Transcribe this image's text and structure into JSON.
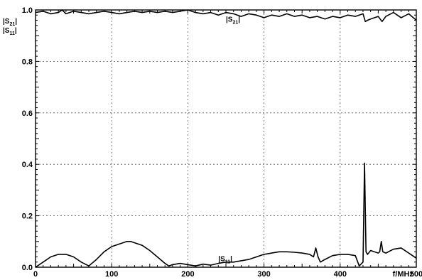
{
  "chart_data": {
    "type": "line",
    "title": "",
    "xlabel": "f/MHz",
    "ylabel": "|S21| |S11|",
    "xlim": [
      0,
      500
    ],
    "ylim": [
      0,
      1.0
    ],
    "grid": true,
    "x_ticks": [
      0,
      100,
      200,
      300,
      400,
      500
    ],
    "y_ticks": [
      0.0,
      0.2,
      0.4,
      0.6,
      0.8,
      1.0
    ],
    "x_tick_labels": [
      "0",
      "100",
      "200",
      "300",
      "400",
      "500"
    ],
    "y_tick_labels": [
      "0.0",
      "0.2",
      "0.4",
      "0.6",
      "0.8",
      "1.0"
    ],
    "y_label_lines": [
      {
        "main": "|S",
        "sub": "21",
        "end": "|"
      },
      {
        "main": "|S",
        "sub": "11",
        "end": "|"
      }
    ],
    "annotations": [
      {
        "main": "|S",
        "sub": "21",
        "end": "|",
        "x": 250,
        "y": 0.965
      },
      {
        "main": "|S",
        "sub": "11",
        "end": "|",
        "x": 240,
        "y": 0.035
      }
    ],
    "series": [
      {
        "name": "|S21|",
        "x": [
          0,
          10,
          20,
          30,
          35,
          40,
          50,
          60,
          70,
          80,
          90,
          100,
          110,
          120,
          130,
          140,
          150,
          160,
          170,
          180,
          190,
          200,
          210,
          220,
          230,
          240,
          250,
          260,
          270,
          280,
          290,
          300,
          310,
          320,
          330,
          340,
          350,
          360,
          370,
          380,
          390,
          400,
          410,
          420,
          430,
          433,
          436,
          440,
          450,
          455,
          460,
          470,
          480,
          490,
          500
        ],
        "values": [
          0.99,
          0.995,
          0.985,
          0.99,
          1.0,
          0.985,
          0.995,
          0.99,
          0.985,
          0.99,
          0.995,
          0.99,
          0.985,
          0.99,
          0.995,
          0.99,
          0.995,
          0.99,
          0.995,
          0.99,
          0.995,
          1.0,
          0.99,
          0.985,
          0.99,
          0.98,
          0.99,
          0.985,
          0.975,
          0.985,
          0.98,
          0.97,
          0.98,
          0.975,
          0.985,
          0.975,
          0.98,
          0.97,
          0.975,
          0.965,
          0.975,
          0.97,
          0.98,
          0.975,
          0.985,
          0.955,
          0.96,
          0.965,
          0.975,
          0.955,
          0.975,
          0.99,
          0.97,
          0.985,
          0.96
        ]
      },
      {
        "name": "|S11|",
        "x": [
          0,
          10,
          20,
          30,
          40,
          50,
          60,
          70,
          80,
          90,
          100,
          110,
          120,
          125,
          130,
          140,
          150,
          160,
          170,
          175,
          180,
          190,
          200,
          210,
          220,
          230,
          240,
          250,
          260,
          270,
          280,
          290,
          300,
          310,
          320,
          330,
          340,
          350,
          360,
          365,
          368,
          371,
          374,
          380,
          390,
          400,
          410,
          420,
          425,
          430,
          432,
          434,
          436,
          440,
          450,
          452,
          454,
          456,
          460,
          470,
          480,
          490,
          500
        ],
        "values": [
          0.0,
          0.02,
          0.04,
          0.05,
          0.05,
          0.04,
          0.02,
          0.005,
          0.03,
          0.06,
          0.08,
          0.09,
          0.1,
          0.1,
          0.095,
          0.085,
          0.065,
          0.04,
          0.015,
          0.005,
          0.01,
          0.015,
          0.01,
          0.005,
          0.012,
          0.008,
          0.015,
          0.02,
          0.02,
          0.025,
          0.03,
          0.04,
          0.05,
          0.055,
          0.06,
          0.06,
          0.058,
          0.055,
          0.05,
          0.04,
          0.075,
          0.04,
          0.02,
          0.03,
          0.045,
          0.05,
          0.05,
          0.045,
          0.005,
          0.02,
          0.405,
          0.06,
          0.05,
          0.065,
          0.055,
          0.06,
          0.1,
          0.06,
          0.055,
          0.07,
          0.075,
          0.055,
          0.035
        ]
      }
    ]
  }
}
